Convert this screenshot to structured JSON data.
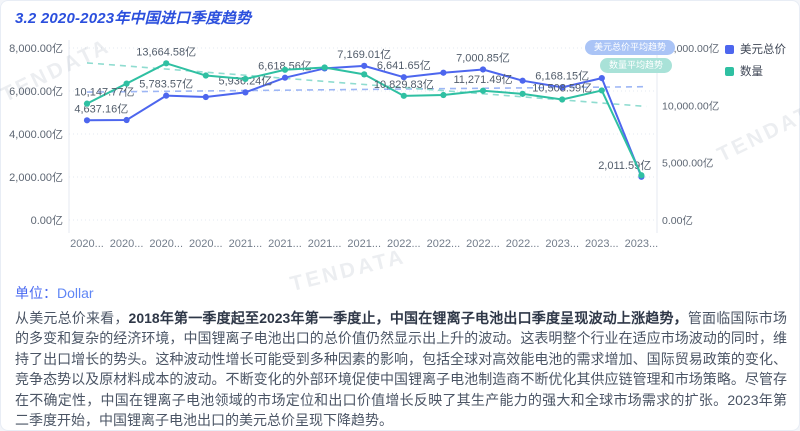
{
  "title": "3.2 2020-2023年中国进口季度趋势",
  "watermark": "TENDATA",
  "unit": {
    "label": "单位：",
    "value": "Dollar"
  },
  "paragraph": {
    "pre": "从美元总价来看，",
    "bold": "2018年第一季度起至2023年第一季度止，中国在锂离子电池出口季度呈现波动上涨趋势，",
    "rest": "管面临国际市场的多变和复杂的经济环境，中国锂离子电池出口的总价值仍然显示出上升的波动。这表明整个行业在适应市场波动的同时，维持了出口增长的势头。这种波动性增长可能受到多种因素的影响，包括全球对高效能电池的需求增加、国际贸易政策的变化、竞争态势以及原材料成本的波动。不断变化的外部环境促使中国锂离子电池制造商不断优化其供应链管理和市场策略。尽管存在不确定性，中国在锂离子电池领域的市场定位和出口价值增长反映了其生产能力的强大和全球市场需求的扩张。2023年第二季度开始，中国锂离子电池出口的美元总价呈现下降趋势。"
  },
  "chart_data": {
    "type": "line",
    "title": "3.2 2020-2023年中国进口季度趋势",
    "unit_suffix": "亿",
    "x_tick_labels": [
      "2020...",
      "2020...",
      "2020...",
      "2020...",
      "2021...",
      "2021...",
      "2021...",
      "2021...",
      "2022...",
      "2022...",
      "2022...",
      "2022...",
      "2023...",
      "2023...",
      "2023..."
    ],
    "left_axis": {
      "min": 0,
      "max": 8000,
      "tick_values": [
        8000,
        6000,
        4000,
        2000,
        0
      ],
      "tick_labels": [
        "8,000.00亿",
        "6,000.00亿",
        "4,000.00亿",
        "2,000.00亿",
        "0.00亿"
      ]
    },
    "right_axis": {
      "min": 0,
      "max": 15000,
      "tick_values": [
        15000,
        10000,
        5000,
        0
      ],
      "tick_labels": [
        "15,000.00亿",
        "10,000.00亿",
        "5,000.00亿",
        "0.00亿"
      ]
    },
    "legend_position": "top-right",
    "grid": "dotted-horizontal",
    "series": [
      {
        "name": "美元总价",
        "axis": "left",
        "color": "#4d66ee",
        "values": [
          4637.16,
          4650,
          5783.57,
          5720,
          5936.24,
          6618.56,
          7050,
          7169.01,
          6641.65,
          6850,
          7000.85,
          6480,
          6168.15,
          6600,
          2011.59
        ],
        "labeled_points": [
          0,
          2,
          4,
          5,
          7,
          8,
          10,
          12,
          14
        ],
        "trend_line": {
          "start_value": 5950,
          "end_value": 6200,
          "color": "#9db6f5"
        }
      },
      {
        "name": "数量",
        "axis": "right",
        "color": "#2fc0a2",
        "values": [
          10147.77,
          11900,
          13664.58,
          12600,
          12300,
          13100,
          13300,
          12700,
          10829.83,
          10900,
          11271.49,
          11000,
          10508.59,
          11300,
          3900
        ],
        "labeled_points": [
          0,
          2,
          8,
          10,
          12
        ],
        "trend_line": {
          "start_value": 13700,
          "end_value": 9900,
          "color": "#8fdcd0"
        }
      }
    ],
    "trend_pills": [
      {
        "label": "美元总价平均趋势",
        "color": "#aac4f6"
      },
      {
        "label": "数量平均趋势",
        "color": "#a9e2d8"
      }
    ]
  }
}
